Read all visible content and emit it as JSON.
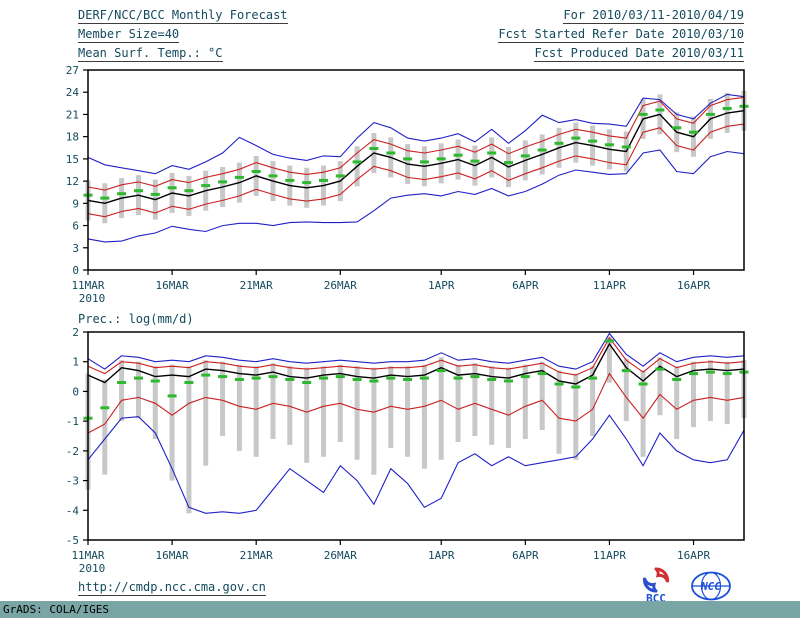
{
  "header": {
    "title": "DERF/NCC/BCC Monthly Forecast",
    "member_size": "Member Size=40",
    "for_range": "For 2010/03/11-2010/04/19",
    "refer_date": "Fcst Started Refer Date 2010/03/10",
    "produced_date": "Fcst Produced Date 2010/03/11"
  },
  "footer": {
    "url": "http://cmdp.ncc.cma.gov.cn",
    "grads_credit": "GrADS: COLA/IGES",
    "bcc_label": "BCC",
    "ncc_label": "NCC"
  },
  "colors": {
    "text": "#134a5e",
    "axis": "#000000",
    "mean": "#000000",
    "quartile": "#cc2020",
    "extreme": "#2020c8",
    "median": "#2eb82e",
    "bar": "#c8c8c8",
    "footer_bar": "#7aa5a5"
  },
  "chart_data": [
    {
      "id": "temp",
      "type": "line",
      "title": "Mean Surf. Temp.: °C",
      "ylim": [
        0,
        27
      ],
      "ytick_step": 3,
      "xlabel": "",
      "ylabel": "",
      "legend": "none",
      "grid": false,
      "x_dates": [
        "11MAR",
        "12MAR",
        "13MAR",
        "14MAR",
        "15MAR",
        "16MAR",
        "17MAR",
        "18MAR",
        "19MAR",
        "20MAR",
        "21MAR",
        "22MAR",
        "23MAR",
        "24MAR",
        "25MAR",
        "26MAR",
        "27MAR",
        "28MAR",
        "29MAR",
        "30MAR",
        "31MAR",
        "1APR",
        "2APR",
        "3APR",
        "4APR",
        "5APR",
        "6APR",
        "7APR",
        "8APR",
        "9APR",
        "10APR",
        "11APR",
        "12APR",
        "13APR",
        "14APR",
        "15APR",
        "16APR",
        "17APR",
        "18APR",
        "19APR"
      ],
      "x_ticks": [
        {
          "i": 0,
          "label": "11MAR",
          "sub": "2010"
        },
        {
          "i": 5,
          "label": "16MAR"
        },
        {
          "i": 10,
          "label": "21MAR"
        },
        {
          "i": 15,
          "label": "26MAR"
        },
        {
          "i": 21,
          "label": "1APR"
        },
        {
          "i": 26,
          "label": "6APR"
        },
        {
          "i": 31,
          "label": "11APR"
        },
        {
          "i": 36,
          "label": "16APR"
        }
      ],
      "series": [
        {
          "name": "ensemble-spread-bar",
          "style": "bar",
          "color_key": "bar",
          "low": [
            6.7,
            6.3,
            7.0,
            7.4,
            6.8,
            7.7,
            7.3,
            8.0,
            8.5,
            9.1,
            10.0,
            9.3,
            8.7,
            8.4,
            8.7,
            9.3,
            11.3,
            13.1,
            12.5,
            11.6,
            11.3,
            11.7,
            12.2,
            11.4,
            12.5,
            11.2,
            12.1,
            12.9,
            13.8,
            14.5,
            14.1,
            13.6,
            13.3,
            17.7,
            18.3,
            15.9,
            15.3,
            17.7,
            18.5,
            18.8
          ],
          "high": [
            12.1,
            11.7,
            12.4,
            12.8,
            12.2,
            13.1,
            12.7,
            13.4,
            13.9,
            14.5,
            15.4,
            14.7,
            14.1,
            13.8,
            14.1,
            14.7,
            16.7,
            18.5,
            17.9,
            17.0,
            16.7,
            17.1,
            17.6,
            16.8,
            17.9,
            16.6,
            17.5,
            18.3,
            19.2,
            19.9,
            19.5,
            19.0,
            18.7,
            23.1,
            23.7,
            21.3,
            20.7,
            23.1,
            23.9,
            24.2
          ]
        },
        {
          "name": "max",
          "style": "line",
          "color_key": "extreme",
          "values": [
            15.2,
            14.2,
            13.8,
            13.4,
            13.0,
            14.1,
            13.6,
            14.6,
            15.8,
            17.9,
            16.8,
            15.6,
            15.1,
            14.8,
            15.4,
            15.3,
            17.8,
            19.9,
            19.2,
            17.8,
            17.4,
            17.8,
            18.4,
            17.3,
            19.0,
            17.1,
            18.8,
            20.9,
            19.9,
            20.3,
            19.8,
            19.7,
            19.4,
            23.2,
            23.0,
            21.0,
            20.4,
            22.5,
            23.7,
            23.4
          ]
        },
        {
          "name": "min",
          "style": "line",
          "color_key": "extreme",
          "values": [
            4.2,
            3.8,
            3.9,
            4.6,
            5.0,
            5.9,
            5.5,
            5.2,
            6.0,
            6.3,
            6.3,
            6.0,
            6.4,
            6.5,
            6.4,
            6.4,
            6.5,
            8.0,
            9.7,
            10.1,
            10.3,
            10.0,
            10.6,
            10.2,
            11.0,
            10.0,
            10.6,
            11.6,
            12.8,
            13.5,
            13.2,
            12.9,
            13.0,
            15.8,
            16.2,
            13.3,
            13.0,
            15.3,
            16.0,
            15.7
          ]
        },
        {
          "name": "upper-quartile",
          "style": "line",
          "color_key": "quartile",
          "values": [
            11.2,
            10.8,
            11.5,
            11.9,
            11.3,
            12.2,
            11.8,
            12.5,
            13.0,
            13.6,
            14.5,
            13.8,
            13.2,
            12.9,
            13.2,
            13.8,
            15.8,
            17.6,
            17.0,
            16.1,
            15.8,
            16.2,
            16.7,
            15.9,
            17.0,
            15.7,
            16.6,
            17.4,
            18.3,
            19.0,
            18.6,
            18.1,
            17.8,
            22.2,
            22.8,
            20.4,
            19.8,
            22.2,
            23.0,
            23.3
          ]
        },
        {
          "name": "lower-quartile",
          "style": "line",
          "color_key": "quartile",
          "values": [
            7.6,
            7.2,
            7.9,
            8.3,
            7.7,
            8.6,
            8.2,
            8.9,
            9.4,
            10.0,
            10.9,
            10.2,
            9.6,
            9.3,
            9.6,
            10.2,
            12.2,
            14.0,
            13.4,
            12.5,
            12.2,
            12.6,
            13.1,
            12.3,
            13.4,
            12.1,
            13.0,
            13.8,
            14.7,
            15.4,
            15.0,
            14.5,
            14.2,
            18.6,
            19.2,
            16.8,
            16.2,
            18.6,
            19.4,
            19.7
          ]
        },
        {
          "name": "ensemble-mean",
          "style": "line",
          "color_key": "mean",
          "width": 1.4,
          "values": [
            9.4,
            9.0,
            9.7,
            10.1,
            9.5,
            10.4,
            10.0,
            10.7,
            11.2,
            11.8,
            12.7,
            12.0,
            11.4,
            11.1,
            11.4,
            12.0,
            14.0,
            15.8,
            15.2,
            14.3,
            14.0,
            14.4,
            14.9,
            14.1,
            15.2,
            13.9,
            14.8,
            15.6,
            16.5,
            17.2,
            16.8,
            16.3,
            16.0,
            20.4,
            21.0,
            18.6,
            18.0,
            20.4,
            21.2,
            21.5
          ]
        },
        {
          "name": "median",
          "style": "dash",
          "color_key": "median",
          "values": [
            10.1,
            9.7,
            10.3,
            10.7,
            10.2,
            11.1,
            10.7,
            11.4,
            11.9,
            12.5,
            13.3,
            12.7,
            12.1,
            11.8,
            12.1,
            12.7,
            14.6,
            16.4,
            15.8,
            15.0,
            14.6,
            15.0,
            15.5,
            14.7,
            15.8,
            14.5,
            15.4,
            16.2,
            17.1,
            17.8,
            17.4,
            16.9,
            16.6,
            21.0,
            21.6,
            19.2,
            18.6,
            21.0,
            21.8,
            22.1
          ]
        }
      ]
    },
    {
      "id": "prec",
      "type": "line",
      "title": "Prec.: log(mm/d)",
      "ylim": [
        -5,
        2
      ],
      "ytick_step": 1,
      "xlabel": "",
      "ylabel": "",
      "legend": "none",
      "grid": false,
      "x_dates": [
        "11MAR",
        "12MAR",
        "13MAR",
        "14MAR",
        "15MAR",
        "16MAR",
        "17MAR",
        "18MAR",
        "19MAR",
        "20MAR",
        "21MAR",
        "22MAR",
        "23MAR",
        "24MAR",
        "25MAR",
        "26MAR",
        "27MAR",
        "28MAR",
        "29MAR",
        "30MAR",
        "31MAR",
        "1APR",
        "2APR",
        "3APR",
        "4APR",
        "5APR",
        "6APR",
        "7APR",
        "8APR",
        "9APR",
        "10APR",
        "11APR",
        "12APR",
        "13APR",
        "14APR",
        "15APR",
        "16APR",
        "17APR",
        "18APR",
        "19APR"
      ],
      "x_ticks": [
        {
          "i": 0,
          "label": "11MAR",
          "sub": "2010"
        },
        {
          "i": 5,
          "label": "16MAR"
        },
        {
          "i": 10,
          "label": "21MAR"
        },
        {
          "i": 15,
          "label": "26MAR"
        },
        {
          "i": 21,
          "label": "1APR"
        },
        {
          "i": 26,
          "label": "6APR"
        },
        {
          "i": 31,
          "label": "11APR"
        },
        {
          "i": 36,
          "label": "16APR"
        }
      ],
      "series": [
        {
          "name": "ensemble-spread-bar",
          "style": "bar",
          "color_key": "bar",
          "low": [
            -3.3,
            -2.8,
            -1.0,
            -0.9,
            -1.6,
            -3.0,
            -4.1,
            -2.5,
            -1.5,
            -2.0,
            -2.2,
            -1.6,
            -1.8,
            -2.4,
            -2.2,
            -1.7,
            -2.3,
            -2.8,
            -1.9,
            -2.2,
            -2.6,
            -2.3,
            -1.7,
            -1.5,
            -1.8,
            -1.9,
            -1.6,
            -1.3,
            -2.1,
            -2.3,
            -1.5,
            0.3,
            -1.0,
            -2.2,
            -0.8,
            -1.6,
            -1.2,
            -1.0,
            -1.1,
            -0.9
          ],
          "high": [
            0.6,
            0.4,
            1.05,
            1.0,
            0.85,
            0.9,
            0.85,
            1.05,
            1.0,
            0.9,
            0.85,
            0.95,
            0.85,
            0.8,
            0.85,
            0.9,
            0.85,
            0.8,
            0.85,
            0.85,
            0.9,
            1.15,
            0.9,
            0.95,
            0.85,
            0.8,
            0.9,
            1.0,
            0.7,
            0.6,
            0.85,
            1.85,
            1.1,
            0.7,
            1.15,
            0.85,
            1.0,
            1.05,
            1.0,
            1.05
          ]
        },
        {
          "name": "max",
          "style": "line",
          "color_key": "extreme",
          "values": [
            1.1,
            0.75,
            1.2,
            1.15,
            1.0,
            1.05,
            1.0,
            1.2,
            1.15,
            1.05,
            1.0,
            1.1,
            1.0,
            0.95,
            1.0,
            1.05,
            1.0,
            0.95,
            1.0,
            1.0,
            1.05,
            1.3,
            1.05,
            1.1,
            1.0,
            0.95,
            1.05,
            1.15,
            0.85,
            0.75,
            1.0,
            1.95,
            1.25,
            0.85,
            1.3,
            1.0,
            1.15,
            1.2,
            1.15,
            1.2
          ]
        },
        {
          "name": "min",
          "style": "line",
          "color_key": "extreme",
          "values": [
            -2.3,
            -1.6,
            -0.9,
            -0.85,
            -1.4,
            -2.6,
            -3.9,
            -4.1,
            -4.05,
            -4.1,
            -4.0,
            -3.3,
            -2.6,
            -3.0,
            -3.4,
            -2.5,
            -3.0,
            -3.8,
            -2.6,
            -3.1,
            -3.9,
            -3.6,
            -2.4,
            -2.1,
            -2.5,
            -2.2,
            -2.5,
            -2.4,
            -2.3,
            -2.2,
            -1.6,
            -0.8,
            -1.6,
            -2.5,
            -1.4,
            -2.0,
            -2.3,
            -2.4,
            -2.3,
            -1.3
          ]
        },
        {
          "name": "upper-quartile",
          "style": "line",
          "color_key": "quartile",
          "values": [
            0.85,
            0.6,
            1.0,
            0.95,
            0.8,
            0.85,
            0.8,
            1.0,
            0.95,
            0.85,
            0.8,
            0.9,
            0.8,
            0.75,
            0.8,
            0.85,
            0.8,
            0.75,
            0.8,
            0.8,
            0.85,
            1.05,
            0.85,
            0.9,
            0.8,
            0.75,
            0.85,
            0.95,
            0.65,
            0.55,
            0.8,
            1.8,
            1.05,
            0.65,
            1.1,
            0.8,
            0.95,
            1.0,
            0.95,
            1.0
          ]
        },
        {
          "name": "lower-quartile",
          "style": "line",
          "color_key": "quartile",
          "values": [
            -1.4,
            -1.1,
            -0.3,
            -0.2,
            -0.4,
            -0.8,
            -0.4,
            -0.2,
            -0.3,
            -0.5,
            -0.6,
            -0.4,
            -0.5,
            -0.7,
            -0.5,
            -0.4,
            -0.6,
            -0.7,
            -0.5,
            -0.6,
            -0.5,
            -0.3,
            -0.6,
            -0.4,
            -0.6,
            -0.8,
            -0.5,
            -0.3,
            -0.9,
            -1.0,
            -0.6,
            0.6,
            -0.2,
            -0.9,
            -0.1,
            -0.6,
            -0.3,
            -0.2,
            -0.3,
            -0.2
          ]
        },
        {
          "name": "ensemble-mean",
          "style": "line",
          "color_key": "mean",
          "width": 1.4,
          "values": [
            0.55,
            0.3,
            0.8,
            0.7,
            0.5,
            0.55,
            0.5,
            0.75,
            0.7,
            0.6,
            0.55,
            0.65,
            0.5,
            0.45,
            0.55,
            0.6,
            0.5,
            0.45,
            0.55,
            0.5,
            0.55,
            0.8,
            0.55,
            0.6,
            0.5,
            0.45,
            0.6,
            0.7,
            0.35,
            0.25,
            0.55,
            1.6,
            0.8,
            0.35,
            0.85,
            0.5,
            0.7,
            0.75,
            0.7,
            0.75
          ]
        },
        {
          "name": "median",
          "style": "dash",
          "color_key": "median",
          "values": [
            -0.9,
            -0.55,
            0.3,
            0.45,
            0.35,
            -0.15,
            0.3,
            0.55,
            0.5,
            0.4,
            0.45,
            0.5,
            0.4,
            0.3,
            0.45,
            0.5,
            0.4,
            0.35,
            0.45,
            0.4,
            0.45,
            0.7,
            0.45,
            0.5,
            0.4,
            0.35,
            0.5,
            0.6,
            0.25,
            0.15,
            0.45,
            1.7,
            0.7,
            0.25,
            0.75,
            0.4,
            0.6,
            0.65,
            0.6,
            0.65
          ]
        }
      ]
    }
  ]
}
